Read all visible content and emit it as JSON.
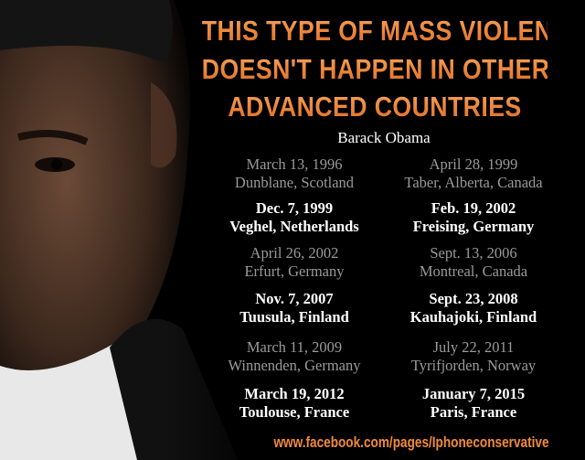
{
  "headline": [
    "THIS TYPE OF MASS VIOLENCE",
    "DOESN'T HAPPEN IN OTHER",
    "ADVANCED COUNTRIES"
  ],
  "attribution": "Barack Obama",
  "entries": [
    {
      "date": "March 13, 1996",
      "place": "Dunblane, Scotland",
      "style": "dim"
    },
    {
      "date": "April 28, 1999",
      "place": "Taber, Alberta, Canada",
      "style": "dim"
    },
    {
      "date": "Dec. 7, 1999",
      "place": "Veghel, Netherlands",
      "style": "bright"
    },
    {
      "date": "Feb. 19, 2002",
      "place": "Freising, Germany",
      "style": "bright"
    },
    {
      "date": "April 26, 2002",
      "place": "Erfurt, Germany",
      "style": "dim"
    },
    {
      "date": "Sept. 13, 2006",
      "place": "Montreal, Canada",
      "style": "dim"
    },
    {
      "date": "Nov. 7, 2007",
      "place": "Tuusula, Finland",
      "style": "bright"
    },
    {
      "date": "Sept. 23, 2008",
      "place": "Kauhajoki, Finland",
      "style": "bright"
    },
    {
      "date": "March 11, 2009",
      "place": "Winnenden, Germany",
      "style": "dim"
    },
    {
      "date": "July 22, 2011",
      "place": "Tyrifjorden, Norway",
      "style": "dim"
    },
    {
      "date": "March 19, 2012",
      "place": "Toulouse, France",
      "style": "bright"
    },
    {
      "date": "January 7, 2015",
      "place": "Paris, France",
      "style": "bright"
    }
  ],
  "footer": "www.facebook.com/pages/Iphoneconservative",
  "colors": {
    "accent": "#f08a3c",
    "dim_text": "#9a9a9a",
    "bright_text": "#ffffff",
    "background": "#000000"
  }
}
